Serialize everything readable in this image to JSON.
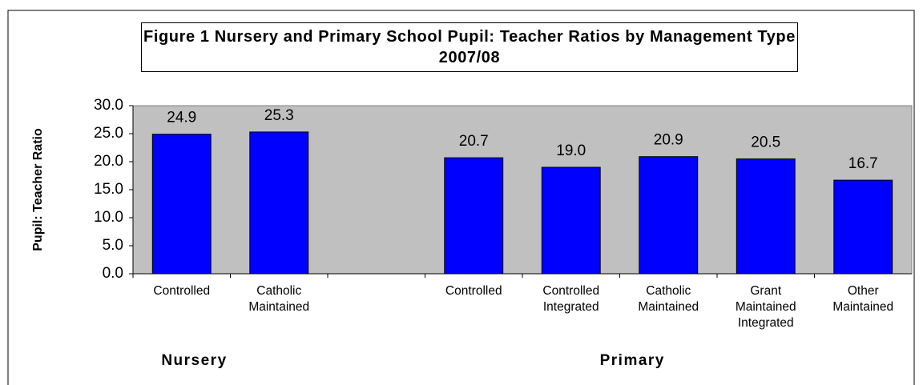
{
  "chart_data": {
    "type": "bar",
    "title": "Figure 1 Nursery and Primary School Pupil: Teacher Ratios by Management Type 2007/08",
    "ylabel": "Pupil: Teacher Ratio",
    "categories": [
      "Controlled",
      "Catholic Maintained",
      null,
      "Controlled",
      "Controlled Integrated",
      "Catholic Maintained",
      "Grant Maintained Integrated",
      "Other Maintained"
    ],
    "values": [
      24.9,
      25.3,
      null,
      20.7,
      19.0,
      20.9,
      20.5,
      16.7
    ],
    "value_labels": [
      "24.9",
      "25.3",
      null,
      "20.7",
      "19.0",
      "20.9",
      "20.5",
      "16.7"
    ],
    "groups": [
      "Nursery",
      "Primary"
    ],
    "color": "#0000ff",
    "ylim": [
      0,
      30
    ],
    "yticks": [
      {
        "value": 0,
        "label": "0.0"
      },
      {
        "value": 5,
        "label": "5.0"
      },
      {
        "value": 10,
        "label": "10.0"
      },
      {
        "value": 15,
        "label": "15.0"
      },
      {
        "value": 20,
        "label": "20.0"
      },
      {
        "value": 25,
        "label": "25.0"
      },
      {
        "value": 30,
        "label": "30.0"
      }
    ],
    "grid": false
  }
}
